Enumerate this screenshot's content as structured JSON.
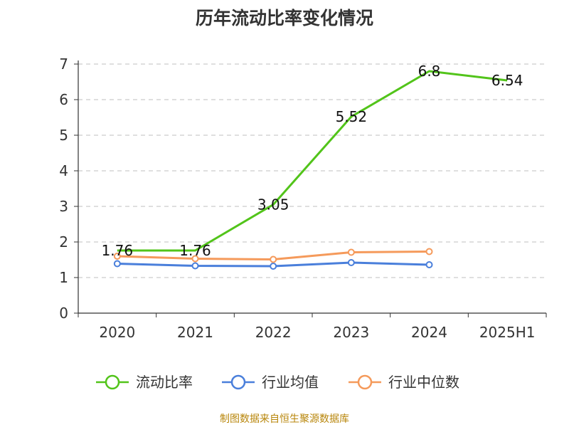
{
  "chart_data": {
    "type": "line",
    "title": "历年流动比率变化情况",
    "categories": [
      "2020",
      "2021",
      "2022",
      "2023",
      "2024",
      "2025H1"
    ],
    "ylim": [
      0,
      7
    ],
    "yticks": [
      "0",
      "1",
      "2",
      "3",
      "4",
      "5",
      "6",
      "7"
    ],
    "grid": true,
    "legend_position": "bottom",
    "series": [
      {
        "name": "流动比率",
        "color": "#52c41a",
        "values": [
          1.76,
          1.76,
          3.05,
          5.52,
          6.8,
          6.54
        ],
        "labels": [
          "1.76",
          "1.76",
          "3.05",
          "5.52",
          "6.8",
          "6.54"
        ],
        "show_markers": false
      },
      {
        "name": "行业均值",
        "color": "#4a7fdb",
        "values": [
          1.39,
          1.33,
          1.32,
          1.42,
          1.36,
          null
        ],
        "show_markers": true
      },
      {
        "name": "行业中位数",
        "color": "#f59a5b",
        "values": [
          1.6,
          1.53,
          1.51,
          1.71,
          1.73,
          null
        ],
        "show_markers": true
      }
    ]
  },
  "source_text": "制图数据来自恒生聚源数据库"
}
